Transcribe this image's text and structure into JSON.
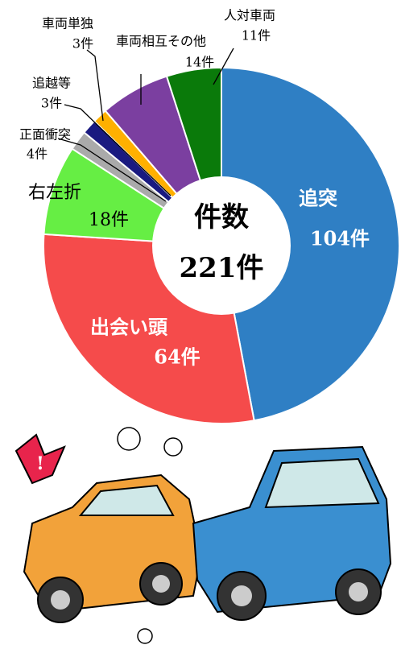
{
  "chart_data": {
    "type": "donut",
    "center_title": "件数",
    "center_value_label": "221件",
    "categories": [
      "追突",
      "出会い頭",
      "右左折",
      "正面衝突",
      "追越等",
      "車両単独",
      "車両相互その他",
      "人対車両"
    ],
    "values": [
      104,
      64,
      18,
      4,
      3,
      3,
      14,
      11
    ],
    "value_labels": [
      "104件",
      "64件",
      "18件",
      "4件",
      "3件",
      "3件",
      "14件",
      "11件"
    ],
    "colors": [
      "#2f7fc4",
      "#f54b4b",
      "#66ee44",
      "#aaaaaa",
      "#1a1a80",
      "#ffb000",
      "#7b3fa0",
      "#0a7a0a"
    ]
  }
}
